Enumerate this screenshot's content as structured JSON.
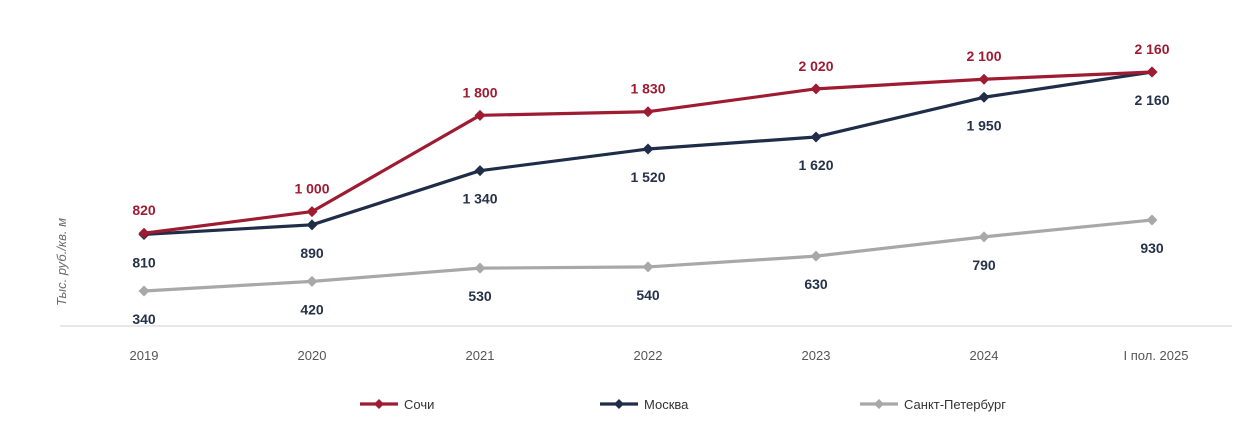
{
  "chart_data": {
    "type": "line",
    "ylabel": "Тыс. руб./кв. м",
    "xlabel": "",
    "categories": [
      "2019",
      "2020",
      "2021",
      "2022",
      "2023",
      "2024",
      "I пол. 2025"
    ],
    "ylim": [
      230,
      2260
    ],
    "grid": false,
    "legend_position": "bottom",
    "series": [
      {
        "name": "Сочи",
        "color": "#9e1b32",
        "label_position": "above",
        "values": [
          820,
          1000,
          1800,
          1830,
          2020,
          2100,
          2160
        ],
        "labels": [
          "820",
          "1 000",
          "1 800",
          "1 830",
          "2 020",
          "2 100",
          "2 160"
        ]
      },
      {
        "name": "Москва",
        "color": "#1f2d48",
        "label_position": "below",
        "values": [
          810,
          890,
          1340,
          1520,
          1620,
          1950,
          2160
        ],
        "labels": [
          "810",
          "890",
          "1 340",
          "1 520",
          "1 620",
          "1 950",
          "2 160"
        ]
      },
      {
        "name": "Санкт-Петербург",
        "color": "#a8a8a8",
        "label_position": "below",
        "values": [
          340,
          420,
          530,
          540,
          630,
          790,
          930
        ],
        "labels": [
          "340",
          "420",
          "530",
          "540",
          "630",
          "790",
          "930"
        ]
      }
    ]
  }
}
